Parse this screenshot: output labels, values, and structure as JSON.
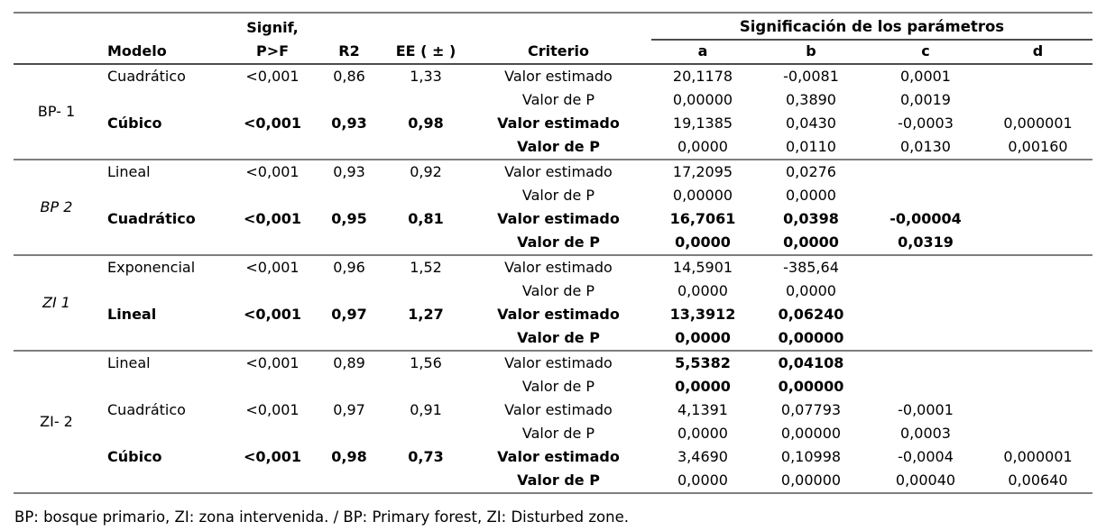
{
  "header": {
    "signif_top": "Signif,",
    "modelo": "Modelo",
    "pf": "P>F",
    "r2": "R2",
    "ee": "EE ( ± )",
    "criterio": "Criterio",
    "params_title": "Significación de los parámetros",
    "param_cols": [
      "a",
      "b",
      "c",
      "d"
    ]
  },
  "groups": [
    {
      "label": "BP- 1",
      "italic": false,
      "rows": [
        {
          "modelo": "Cuadrático",
          "signif": "<0,001",
          "r2": "0,86",
          "ee": "1,33",
          "criterio": "Valor estimado",
          "a": "20,1178",
          "b": "-0,0081",
          "c": "0,0001",
          "d": "",
          "bold_left": false,
          "bold_params": false
        },
        {
          "modelo": "",
          "signif": "",
          "r2": "",
          "ee": "",
          "criterio": "Valor de P",
          "a": "0,00000",
          "b": "0,3890",
          "c": "0,0019",
          "d": "",
          "bold_left": false,
          "bold_params": false
        },
        {
          "modelo": "Cúbico",
          "signif": "<0,001",
          "r2": "0,93",
          "ee": "0,98",
          "criterio": "Valor estimado",
          "a": "19,1385",
          "b": "0,0430",
          "c": "-0,0003",
          "d": "0,000001",
          "bold_left": true,
          "bold_params": false
        },
        {
          "modelo": "",
          "signif": "",
          "r2": "",
          "ee": "",
          "criterio": "Valor de P",
          "a": "0,0000",
          "b": "0,0110",
          "c": "0,0130",
          "d": "0,00160",
          "bold_left": true,
          "bold_params": false
        }
      ]
    },
    {
      "label": "BP 2",
      "italic": true,
      "rows": [
        {
          "modelo": "Lineal",
          "signif": "<0,001",
          "r2": "0,93",
          "ee": "0,92",
          "criterio": "Valor estimado",
          "a": "17,2095",
          "b": "0,0276",
          "c": "",
          "d": "",
          "bold_left": false,
          "bold_params": false
        },
        {
          "modelo": "",
          "signif": "",
          "r2": "",
          "ee": "",
          "criterio": "Valor de P",
          "a": "0,00000",
          "b": "0,0000",
          "c": "",
          "d": "",
          "bold_left": false,
          "bold_params": false
        },
        {
          "modelo": "Cuadrático",
          "signif": "<0,001",
          "r2": "0,95",
          "ee": "0,81",
          "criterio": "Valor estimado",
          "a": "16,7061",
          "b": "0,0398",
          "c": "-0,00004",
          "d": "",
          "bold_left": true,
          "bold_params": true
        },
        {
          "modelo": "",
          "signif": "",
          "r2": "",
          "ee": "",
          "criterio": "Valor de P",
          "a": "0,0000",
          "b": "0,0000",
          "c": "0,0319",
          "d": "",
          "bold_left": true,
          "bold_params": true
        }
      ]
    },
    {
      "label": "ZI 1",
      "italic": true,
      "rows": [
        {
          "modelo": "Exponencial",
          "signif": "<0,001",
          "r2": "0,96",
          "ee": "1,52",
          "criterio": "Valor estimado",
          "a": "14,5901",
          "b": "-385,64",
          "c": "",
          "d": "",
          "bold_left": false,
          "bold_params": false
        },
        {
          "modelo": "",
          "signif": "",
          "r2": "",
          "ee": "",
          "criterio": "Valor de P",
          "a": "0,0000",
          "b": "0,0000",
          "c": "",
          "d": "",
          "bold_left": false,
          "bold_params": false
        },
        {
          "modelo": "Lineal",
          "signif": "<0,001",
          "r2": "0,97",
          "ee": "1,27",
          "criterio": "Valor estimado",
          "a": "13,3912",
          "b": "0,06240",
          "c": "",
          "d": "",
          "bold_left": true,
          "bold_params": true
        },
        {
          "modelo": "",
          "signif": "",
          "r2": "",
          "ee": "",
          "criterio": "Valor de P",
          "a": "0,0000",
          "b": "0,00000",
          "c": "",
          "d": "",
          "bold_left": true,
          "bold_params": true
        }
      ]
    },
    {
      "label": "ZI- 2",
      "italic": false,
      "rows": [
        {
          "modelo": "Lineal",
          "signif": "<0,001",
          "r2": "0,89",
          "ee": "1,56",
          "criterio": "Valor estimado",
          "a": "5,5382",
          "b": "0,04108",
          "c": "",
          "d": "",
          "bold_left": false,
          "bold_params": true
        },
        {
          "modelo": "",
          "signif": "",
          "r2": "",
          "ee": "",
          "criterio": "Valor de P",
          "a": "0,0000",
          "b": "0,00000",
          "c": "",
          "d": "",
          "bold_left": false,
          "bold_params": true
        },
        {
          "modelo": "Cuadrático",
          "signif": "<0,001",
          "r2": "0,97",
          "ee": "0,91",
          "criterio": "Valor estimado",
          "a": "4,1391",
          "b": "0,07793",
          "c": "-0,0001",
          "d": "",
          "bold_left": false,
          "bold_params": false
        },
        {
          "modelo": "",
          "signif": "",
          "r2": "",
          "ee": "",
          "criterio": "Valor de P",
          "a": "0,0000",
          "b": "0,00000",
          "c": "0,0003",
          "d": "",
          "bold_left": false,
          "bold_params": false
        },
        {
          "modelo": "Cúbico",
          "signif": "<0,001",
          "r2": "0,98",
          "ee": "0,73",
          "criterio": "Valor estimado",
          "a": "3,4690",
          "b": "0,10998",
          "c": "-0,0004",
          "d": "0,000001",
          "bold_left": true,
          "bold_params": false
        },
        {
          "modelo": "",
          "signif": "",
          "r2": "",
          "ee": "",
          "criterio": "Valor de P",
          "a": "0,0000",
          "b": "0,00000",
          "c": "0,00040",
          "d": "0,00640",
          "bold_left": true,
          "bold_params": false
        }
      ]
    }
  ],
  "footnote": "BP: bosque primario, ZI: zona intervenida. / BP: Primary forest, ZI: Disturbed zone."
}
